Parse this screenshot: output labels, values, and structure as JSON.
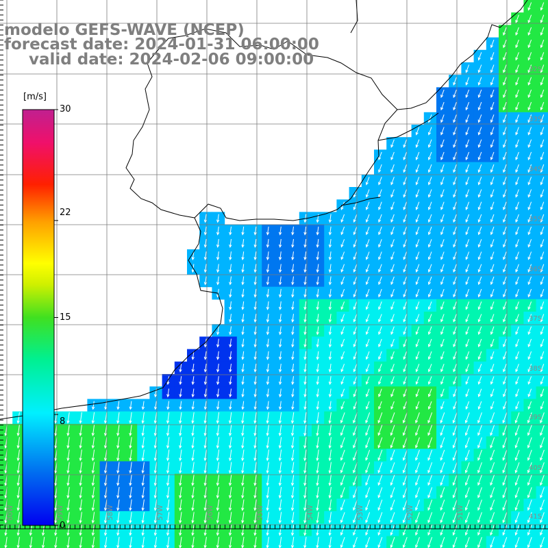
{
  "title": {
    "model": "modelo GEFS-WAVE (NCEP)",
    "forecast": "forecast date: 2024-01-31 06:00:00",
    "valid": "valid date: 2024-02-06 09:00:00"
  },
  "colorbar": {
    "unit": "[m/s]",
    "ticks": [
      {
        "label": "30",
        "value": 30
      },
      {
        "label": "22",
        "value": 22
      },
      {
        "label": "15",
        "value": 15
      },
      {
        "label": "8",
        "value": 8
      },
      {
        "label": "0",
        "value": 0
      }
    ]
  },
  "grid": {
    "lon_labels": [
      "60W",
      "59W",
      "58W",
      "57W",
      "56W",
      "55W",
      "54W",
      "53W",
      "52W",
      "51W"
    ],
    "lat_labels": [
      "32S",
      "33S",
      "34S",
      "35S",
      "36S",
      "37S",
      "38S",
      "39S",
      "40S",
      "41S"
    ]
  },
  "legend_colors": {
    "dark_blue": "#0033ee",
    "blue": "#0077f0",
    "light_blue": "#00b4ff",
    "cyan": "#00f0f0",
    "aqua_green": "#00f6b0",
    "green": "#22e844",
    "arrow": "#ffffff",
    "land": "#ffffff"
  }
}
